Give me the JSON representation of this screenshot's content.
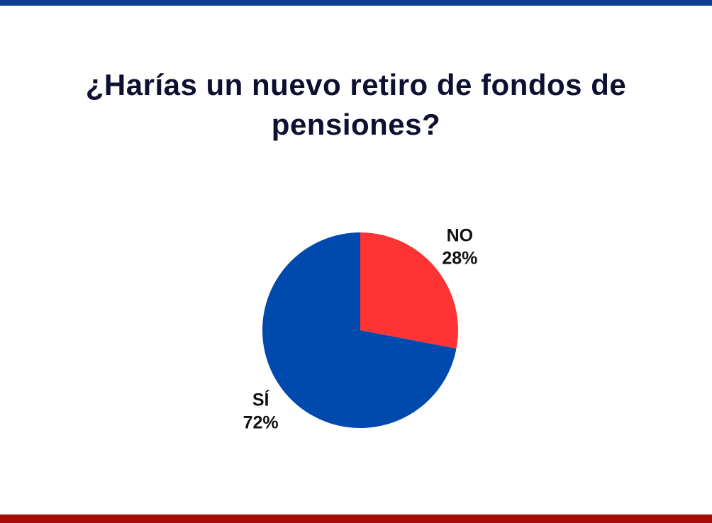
{
  "chart_data": {
    "type": "pie",
    "title": "¿Harías un nuevo retiro de fondos de pensiones?",
    "categories": [
      "NO",
      "SÍ"
    ],
    "values": [
      28,
      72
    ],
    "value_labels": [
      "28%",
      "72%"
    ],
    "colors": [
      "#ff3333",
      "#004aad"
    ]
  }
}
